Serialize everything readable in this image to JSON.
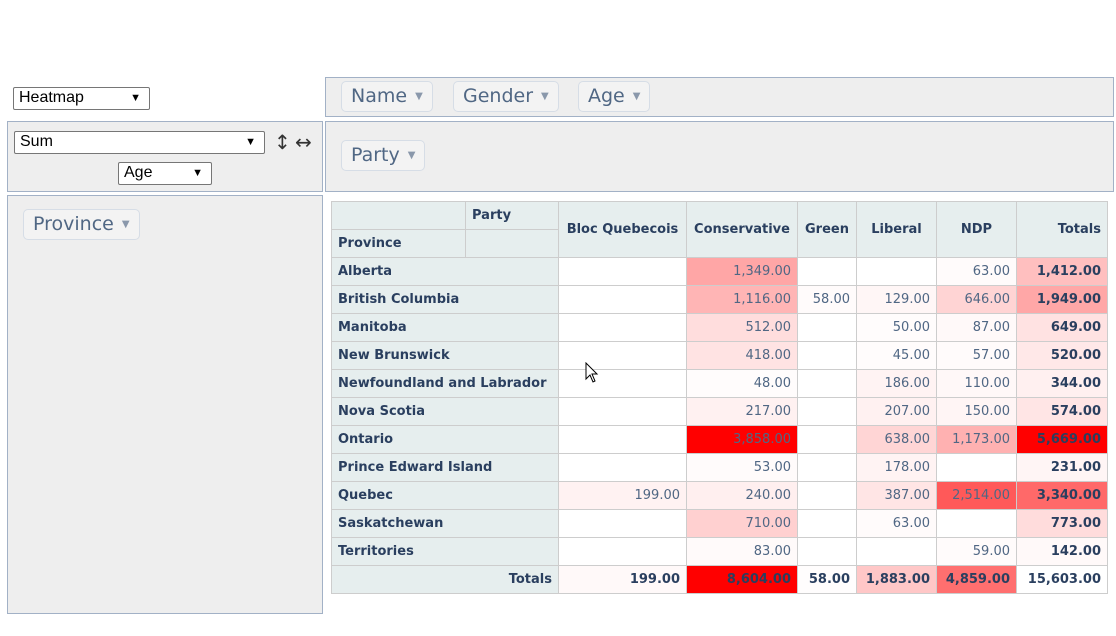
{
  "renderer": {
    "value": "Heatmap"
  },
  "aggregator": {
    "value": "Sum",
    "attribute": "Age"
  },
  "unused_attributes": [
    {
      "label": "Name"
    },
    {
      "label": "Gender"
    },
    {
      "label": "Age"
    }
  ],
  "column_attribute": {
    "label": "Party"
  },
  "row_attribute": {
    "label": "Province"
  },
  "table": {
    "corner_col_label": "Party",
    "corner_row_label": "Province",
    "columns": [
      "Bloc Quebecois",
      "Conservative",
      "Green",
      "Liberal",
      "NDP"
    ],
    "totals_label": "Totals",
    "rows": [
      {
        "label": "Alberta",
        "cells": [
          "",
          "1,349.00",
          "",
          "",
          "63.00"
        ],
        "total": "1,412.00"
      },
      {
        "label": "British Columbia",
        "cells": [
          "",
          "1,116.00",
          "58.00",
          "129.00",
          "646.00"
        ],
        "total": "1,949.00"
      },
      {
        "label": "Manitoba",
        "cells": [
          "",
          "512.00",
          "",
          "50.00",
          "87.00"
        ],
        "total": "649.00"
      },
      {
        "label": "New Brunswick",
        "cells": [
          "",
          "418.00",
          "",
          "45.00",
          "57.00"
        ],
        "total": "520.00"
      },
      {
        "label": "Newfoundland and Labrador",
        "cells": [
          "",
          "48.00",
          "",
          "186.00",
          "110.00"
        ],
        "total": "344.00"
      },
      {
        "label": "Nova Scotia",
        "cells": [
          "",
          "217.00",
          "",
          "207.00",
          "150.00"
        ],
        "total": "574.00"
      },
      {
        "label": "Ontario",
        "cells": [
          "",
          "3,858.00",
          "",
          "638.00",
          "1,173.00"
        ],
        "total": "5,669.00"
      },
      {
        "label": "Prince Edward Island",
        "cells": [
          "",
          "53.00",
          "",
          "178.00",
          ""
        ],
        "total": "231.00"
      },
      {
        "label": "Quebec",
        "cells": [
          "199.00",
          "240.00",
          "",
          "387.00",
          "2,514.00"
        ],
        "total": "3,340.00"
      },
      {
        "label": "Saskatchewan",
        "cells": [
          "",
          "710.00",
          "",
          "63.00",
          ""
        ],
        "total": "773.00"
      },
      {
        "label": "Territories",
        "cells": [
          "",
          "83.00",
          "",
          "",
          "59.00"
        ],
        "total": "142.00"
      }
    ],
    "column_totals": [
      "199.00",
      "8,604.00",
      "58.00",
      "1,883.00",
      "4,859.00"
    ],
    "grand_total": "15,603.00"
  },
  "colors": {
    "heat_max": "#ff0000",
    "header_bg": "#e6eeee",
    "panel_bg": "#eeeeee"
  }
}
